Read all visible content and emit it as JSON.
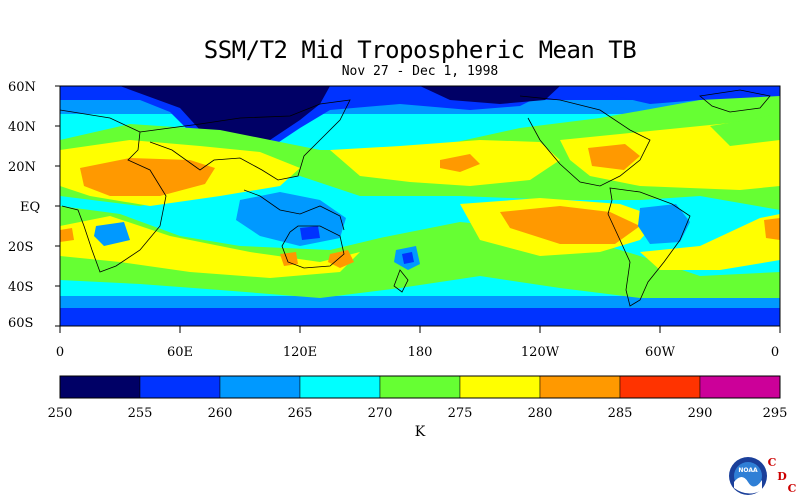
{
  "title": "SSM/T2 Mid Tropospheric Mean TB",
  "subtitle": "Nov 27 - Dec 1, 1998",
  "lat_labels": [
    "60N",
    "40N",
    "20N",
    "EQ",
    "20S",
    "40S",
    "60S"
  ],
  "lon_labels": [
    "0",
    "60E",
    "120E",
    "180",
    "120W",
    "60W",
    "0"
  ],
  "colorbar": {
    "ticks": [
      "250",
      "255",
      "260",
      "265",
      "270",
      "275",
      "280",
      "285",
      "290",
      "295"
    ],
    "colors": [
      "#000066",
      "#0033ff",
      "#0099ff",
      "#00ffff",
      "#66ff33",
      "#ffff00",
      "#ff9900",
      "#ff3300",
      "#cc0099"
    ],
    "units": "K"
  },
  "logo": {
    "name": "NOAA",
    "letters": [
      "C",
      "D",
      "C"
    ],
    "letter_color": "#cc0000"
  }
}
